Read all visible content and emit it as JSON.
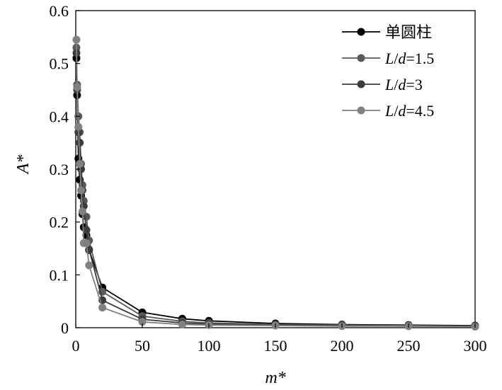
{
  "chart_data": {
    "type": "line",
    "title": "",
    "xlabel": "m*",
    "ylabel": "A*",
    "xlim": [
      0,
      300
    ],
    "ylim": [
      0,
      0.6
    ],
    "xticks": [
      0,
      50,
      100,
      150,
      200,
      250,
      300
    ],
    "yticks": [
      0,
      0.1,
      0.2,
      0.3,
      0.4,
      0.5,
      0.6
    ],
    "xtick_labels": [
      "0",
      "50",
      "100",
      "150",
      "200",
      "250",
      "300"
    ],
    "ytick_labels": [
      "0",
      "0.1",
      "0.2",
      "0.3",
      "0.4",
      "0.5",
      "0.6"
    ],
    "grid": false,
    "legend_position": "top-right",
    "series": [
      {
        "name": "单圆柱",
        "legend_parts": [
          {
            "text": "单圆柱",
            "italic": false
          }
        ],
        "color": "#000000",
        "x": [
          0.5,
          1,
          2,
          3,
          4,
          5,
          6,
          8,
          10,
          20,
          50,
          80,
          100,
          150,
          200,
          250,
          300
        ],
        "y": [
          0.51,
          0.44,
          0.32,
          0.28,
          0.25,
          0.215,
          0.19,
          0.175,
          0.147,
          0.076,
          0.029,
          0.017,
          0.013,
          0.008,
          0.006,
          0.005,
          0.004
        ]
      },
      {
        "name": "L/d=1.5",
        "legend_parts": [
          {
            "text": "L",
            "italic": true
          },
          {
            "text": "/",
            "italic": false
          },
          {
            "text": "d",
            "italic": true
          },
          {
            "text": "=1.5",
            "italic": false
          }
        ],
        "color": "#5a5a5a",
        "x": [
          0.5,
          1,
          2,
          3,
          4,
          5,
          6,
          8,
          10,
          20,
          50,
          80,
          100,
          150,
          200,
          250,
          300
        ],
        "y": [
          0.53,
          0.46,
          0.4,
          0.37,
          0.31,
          0.27,
          0.24,
          0.21,
          0.165,
          0.068,
          0.022,
          0.012,
          0.009,
          0.006,
          0.005,
          0.004,
          0.003
        ]
      },
      {
        "name": "L/d=3",
        "legend_parts": [
          {
            "text": "L",
            "italic": true
          },
          {
            "text": "/",
            "italic": false
          },
          {
            "text": "d",
            "italic": true
          },
          {
            "text": "=3",
            "italic": false
          }
        ],
        "color": "#3c3c3c",
        "x": [
          0.5,
          1,
          2,
          3,
          4,
          5,
          6,
          8,
          10,
          20,
          50,
          80,
          100,
          150,
          200,
          250,
          300
        ],
        "y": [
          0.52,
          0.45,
          0.37,
          0.35,
          0.3,
          0.26,
          0.23,
          0.185,
          0.148,
          0.052,
          0.016,
          0.009,
          0.007,
          0.005,
          0.004,
          0.003,
          0.003
        ]
      },
      {
        "name": "L/d=4.5",
        "legend_parts": [
          {
            "text": "L",
            "italic": true
          },
          {
            "text": "/",
            "italic": false
          },
          {
            "text": "d",
            "italic": true
          },
          {
            "text": "=4.5",
            "italic": false
          }
        ],
        "color": "#808080",
        "x": [
          0.5,
          1,
          2,
          3,
          4,
          5,
          6,
          8,
          10,
          20,
          50,
          80,
          100,
          150,
          200,
          250,
          300
        ],
        "y": [
          0.545,
          0.455,
          0.38,
          0.31,
          0.26,
          0.22,
          0.16,
          0.16,
          0.118,
          0.038,
          0.011,
          0.006,
          0.005,
          0.004,
          0.003,
          0.003,
          0.002
        ]
      }
    ]
  }
}
